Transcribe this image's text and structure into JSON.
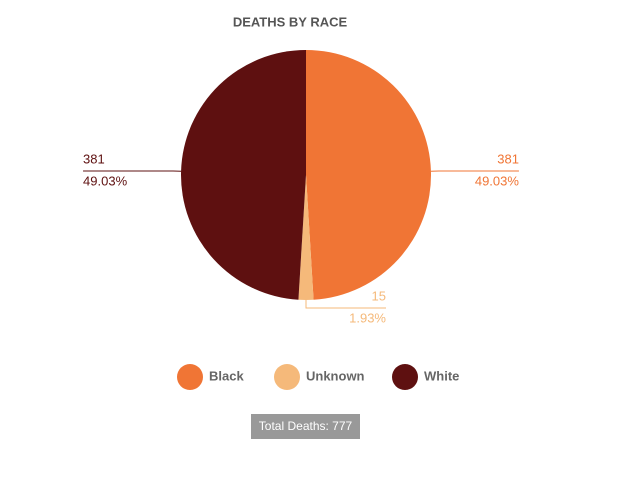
{
  "chart_data": {
    "type": "pie",
    "title": "DEATHS BY RACE",
    "categories": [
      "Black",
      "Unknown",
      "White"
    ],
    "values": [
      381,
      15,
      381
    ],
    "percent_labels": [
      "49.03%",
      "1.93%",
      "49.03%"
    ],
    "colors": [
      "#f07535",
      "#f5b97a",
      "#5e1010"
    ],
    "legend": "bottom",
    "footer": "Total Deaths: 777"
  }
}
